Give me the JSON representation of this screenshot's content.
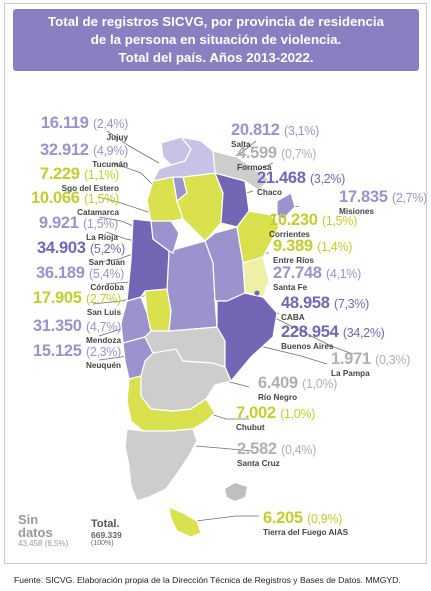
{
  "title_lines": [
    "Total de registros SICVG, por provincia de residencia",
    "de la persona en situación de violencia.",
    "Total del país.  Años 2013-2022."
  ],
  "colors": {
    "dark_purple": "#7466b4",
    "mid_purple": "#9b93cd",
    "light_purple": "#c8c3e6",
    "yellow_strong": "#d9e14f",
    "yellow_light": "#eef0a8",
    "gray": "#cdcdcd",
    "text_purple": "#8a7fc0",
    "text_yellow": "#c4cc2e",
    "text_gray": "#b0b0b0"
  },
  "provinces": [
    {
      "name": "Jujuy",
      "value": "16.119",
      "pct": "(2,4%)",
      "tone": "mid"
    },
    {
      "name": "Salta",
      "value": "20.812",
      "pct": "(3,1%)",
      "tone": "mid"
    },
    {
      "name": "Tucumán",
      "value": "32.912",
      "pct": "(4,9%)",
      "tone": "mid"
    },
    {
      "name": "Formosa",
      "value": "4.599",
      "pct": "(0,7%)",
      "tone": "gray"
    },
    {
      "name": "Sgo del Estero",
      "value": "7.229",
      "pct": "(1,1%)",
      "tone": "yellow"
    },
    {
      "name": "Chaco",
      "value": "21.468",
      "pct": "(3,2%)",
      "tone": "mid"
    },
    {
      "name": "Catamarca",
      "value": "10.066",
      "pct": "(1,5%)",
      "tone": "yellow"
    },
    {
      "name": "Misiones",
      "value": "17.835",
      "pct": "(2,7%)",
      "tone": "mid"
    },
    {
      "name": "La Rioja",
      "value": "9.921",
      "pct": "(1,5%)",
      "tone": "mid"
    },
    {
      "name": "Corrientes",
      "value": "10.230",
      "pct": "(1,5%)",
      "tone": "yellow"
    },
    {
      "name": "San Juan",
      "value": "34.903",
      "pct": "(5,2%)",
      "tone": "mid"
    },
    {
      "name": "Entre Ríos",
      "value": "9.389",
      "pct": "(1,4%)",
      "tone": "yellow"
    },
    {
      "name": "Córdoba",
      "value": "36.189",
      "pct": "(5,4%)",
      "tone": "mid"
    },
    {
      "name": "Santa Fe",
      "value": "27.748",
      "pct": "(4,1%)",
      "tone": "mid"
    },
    {
      "name": "San Luis",
      "value": "17.905",
      "pct": "(2,7%)",
      "tone": "yellow"
    },
    {
      "name": "CABA",
      "value": "48.958",
      "pct": "(7,3%)",
      "tone": "mid"
    },
    {
      "name": "Mendoza",
      "value": "31.350",
      "pct": "(4,7%)",
      "tone": "mid"
    },
    {
      "name": "Buenos Aires",
      "value": "228.954",
      "pct": "(34,2%)",
      "tone": "mid"
    },
    {
      "name": "Neuquén",
      "value": "15.125",
      "pct": "(2,3%)",
      "tone": "mid"
    },
    {
      "name": "La Pampa",
      "value": "1.971",
      "pct": "(0,3%)",
      "tone": "gray"
    },
    {
      "name": "Río Negro",
      "value": "6.409",
      "pct": "(1,0%)",
      "tone": "gray"
    },
    {
      "name": "Chubut",
      "value": "7.002",
      "pct": "(1,0%)",
      "tone": "yellow"
    },
    {
      "name": "Santa Cruz",
      "value": "2.582",
      "pct": "(0,4%)",
      "tone": "gray"
    },
    {
      "name": "Tierra del Fuego AIAS",
      "value": "6.205",
      "pct": "(0,9%)",
      "tone": "yellow"
    }
  ],
  "sin_datos": {
    "label1": "Sin",
    "label2": "datos",
    "value": "43.458 (6,5%)"
  },
  "total": {
    "label": "Total.",
    "value": "669.339",
    "pct": "(100%)"
  },
  "footer": "Fuente: SICVG. Elaboración propia de la Dirección Técnica de Registros y Bases de Datos. MMGYD."
}
